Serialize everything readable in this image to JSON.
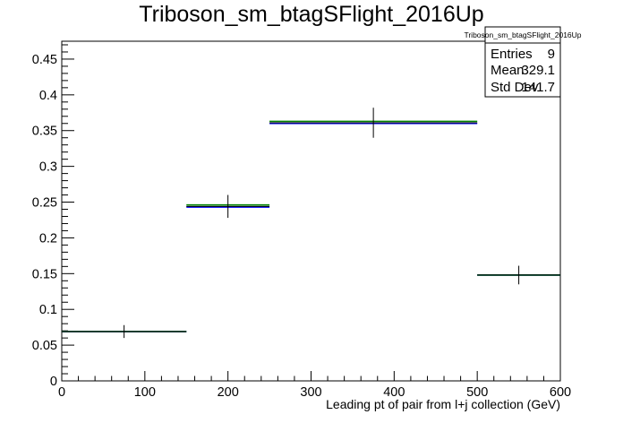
{
  "chart_data": {
    "type": "histogram",
    "title": "Triboson_sm_btagSFlight_2016Up",
    "xlabel": "Leading pt of pair from l+j collection (GeV)",
    "ylabel": "",
    "xlim": [
      0,
      600
    ],
    "ylim": [
      0,
      0.475
    ],
    "x_ticks": [
      0,
      100,
      200,
      300,
      400,
      500,
      600
    ],
    "y_ticks": [
      0,
      0.05,
      0.1,
      0.15,
      0.2,
      0.25,
      0.3,
      0.35,
      0.4,
      0.45
    ],
    "x_tick_labels": [
      "0",
      "100",
      "200",
      "300",
      "400",
      "500",
      "600"
    ],
    "y_tick_labels": [
      "0",
      "0.05",
      "0.1",
      "0.15",
      "0.2",
      "0.25",
      "0.3",
      "0.35",
      "0.4",
      "0.45"
    ],
    "grid": false,
    "bins": [
      {
        "low": 0,
        "high": 150,
        "center": 75,
        "value": 0.069,
        "error": 0.009
      },
      {
        "low": 150,
        "high": 250,
        "center": 200,
        "value": 0.244,
        "error": 0.016
      },
      {
        "low": 250,
        "high": 500,
        "center": 375,
        "value": 0.361,
        "error": 0.021
      },
      {
        "low": 500,
        "high": 600,
        "center": 550,
        "value": 0.148,
        "error": 0.013
      }
    ],
    "overlays": [
      {
        "color": "#0000ff",
        "values": [
          0.069,
          0.243,
          0.36,
          0.148
        ]
      },
      {
        "color": "#008000",
        "values": [
          0.069,
          0.246,
          0.363,
          0.148
        ]
      }
    ],
    "stats_box": {
      "title": "Triboson_sm_btagSFlight_2016Up",
      "rows": [
        {
          "label": "Entries",
          "value": "9"
        },
        {
          "label": "Mean",
          "value": "329.1"
        },
        {
          "label": "Std Dev",
          "value": "141.7"
        }
      ],
      "placement": "top-right"
    },
    "colors": {
      "data": "#000000",
      "frame": "#000000",
      "background": "#ffffff"
    }
  }
}
